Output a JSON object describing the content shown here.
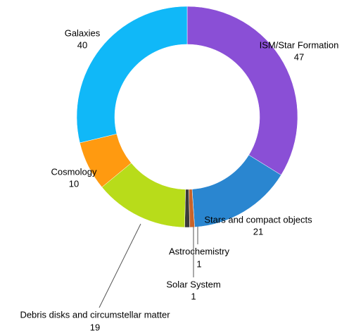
{
  "chart_data": {
    "type": "donut",
    "categories": [
      "ISM/Star Formation",
      "Stars and compact objects",
      "Astrochemistry",
      "Solar System",
      "Debris disks and circumstellar matter",
      "Cosmology",
      "Galaxies"
    ],
    "values": [
      47,
      21,
      1,
      1,
      19,
      10,
      40
    ],
    "colors": [
      "#8a4fd6",
      "#2a86d0",
      "#c8632a",
      "#3a3a3a",
      "#b8dc1a",
      "#ff9a10",
      "#10b8f8"
    ]
  }
}
